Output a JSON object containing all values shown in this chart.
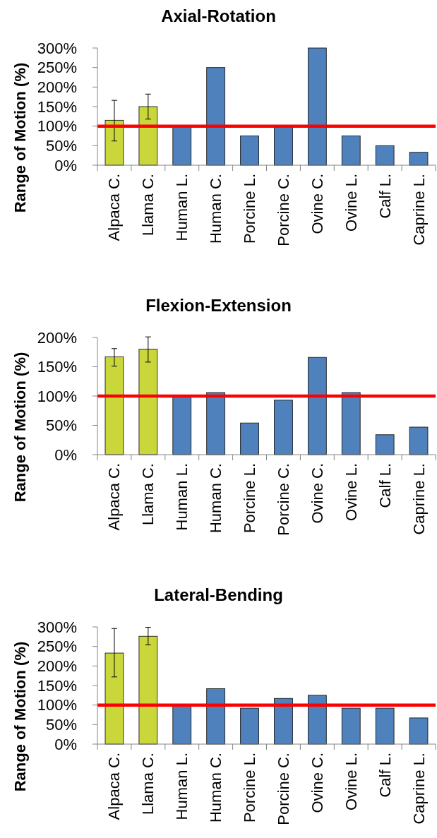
{
  "chart_data": [
    {
      "type": "bar",
      "title": "Axial-Rotation",
      "ylabel": "Range of Motion (%)",
      "categories": [
        "Alpaca C.",
        "Llama C.",
        "Human L.",
        "Human C.",
        "Porcine L.",
        "Porcine C.",
        "Ovine C.",
        "Ovine L.",
        "Calf L.",
        "Caprine L."
      ],
      "values": [
        115,
        150,
        100,
        250,
        75,
        100,
        300,
        75,
        50,
        33
      ],
      "colors": [
        "#c9d73b",
        "#c9d73b",
        "#4f81bd",
        "#4f81bd",
        "#4f81bd",
        "#4f81bd",
        "#4f81bd",
        "#4f81bd",
        "#4f81bd",
        "#4f81bd"
      ],
      "errors": [
        [
          62,
          166
        ],
        [
          118,
          182
        ],
        null,
        null,
        null,
        null,
        null,
        null,
        null,
        null
      ],
      "ylim": [
        0,
        300
      ],
      "yticks": [
        {
          "value": 0,
          "label": "0%"
        },
        {
          "value": 50,
          "label": "50%"
        },
        {
          "value": 100,
          "label": "100%"
        },
        {
          "value": 150,
          "label": "150%"
        },
        {
          "value": 200,
          "label": "200%"
        },
        {
          "value": 250,
          "label": "250%"
        },
        {
          "value": 300,
          "label": "300%"
        }
      ],
      "ref_lines": [
        {
          "axis": "y",
          "value": 100,
          "color": "#ff0000"
        }
      ]
    },
    {
      "type": "bar",
      "title": "Flexion-Extension",
      "ylabel": "Range of Motion (%)",
      "categories": [
        "Alpaca C.",
        "Llama C.",
        "Human L.",
        "Human C.",
        "Porcine L.",
        "Porcine C.",
        "Ovine C.",
        "Ovine L.",
        "Calf L.",
        "Caprine L."
      ],
      "values": [
        167,
        180,
        100,
        106,
        54,
        93,
        166,
        106,
        34,
        47
      ],
      "colors": [
        "#c9d73b",
        "#c9d73b",
        "#4f81bd",
        "#4f81bd",
        "#4f81bd",
        "#4f81bd",
        "#4f81bd",
        "#4f81bd",
        "#4f81bd",
        "#4f81bd"
      ],
      "errors": [
        [
          151,
          181
        ],
        [
          158,
          201
        ],
        null,
        null,
        null,
        null,
        null,
        null,
        null,
        null
      ],
      "ylim": [
        0,
        200
      ],
      "yticks": [
        {
          "value": 0,
          "label": "0%"
        },
        {
          "value": 50,
          "label": "50%"
        },
        {
          "value": 100,
          "label": "100%"
        },
        {
          "value": 150,
          "label": "150%"
        },
        {
          "value": 200,
          "label": "200%"
        }
      ],
      "ref_lines": [
        {
          "axis": "y",
          "value": 100,
          "color": "#ff0000"
        }
      ]
    },
    {
      "type": "bar",
      "title": "Lateral-Bending",
      "ylabel": "Range of Motion (%)",
      "categories": [
        "Alpaca C.",
        "Llama C.",
        "Human L.",
        "Human C.",
        "Porcine L.",
        "Porcine C.",
        "Ovine C.",
        "Ovine L.",
        "Calf L.",
        "Caprine L."
      ],
      "values": [
        233,
        276,
        100,
        142,
        92,
        117,
        125,
        92,
        92,
        67
      ],
      "colors": [
        "#c9d73b",
        "#c9d73b",
        "#4f81bd",
        "#4f81bd",
        "#4f81bd",
        "#4f81bd",
        "#4f81bd",
        "#4f81bd",
        "#4f81bd",
        "#4f81bd"
      ],
      "errors": [
        [
          172,
          296
        ],
        [
          254,
          299
        ],
        null,
        null,
        null,
        null,
        null,
        null,
        null,
        null
      ],
      "ylim": [
        0,
        300
      ],
      "yticks": [
        {
          "value": 0,
          "label": "0%"
        },
        {
          "value": 50,
          "label": "50%"
        },
        {
          "value": 100,
          "label": "100%"
        },
        {
          "value": 150,
          "label": "150%"
        },
        {
          "value": 200,
          "label": "200%"
        },
        {
          "value": 250,
          "label": "250%"
        },
        {
          "value": 300,
          "label": "300%"
        }
      ],
      "ref_lines": [
        {
          "axis": "y",
          "value": 100,
          "color": "#ff0000"
        }
      ]
    }
  ]
}
